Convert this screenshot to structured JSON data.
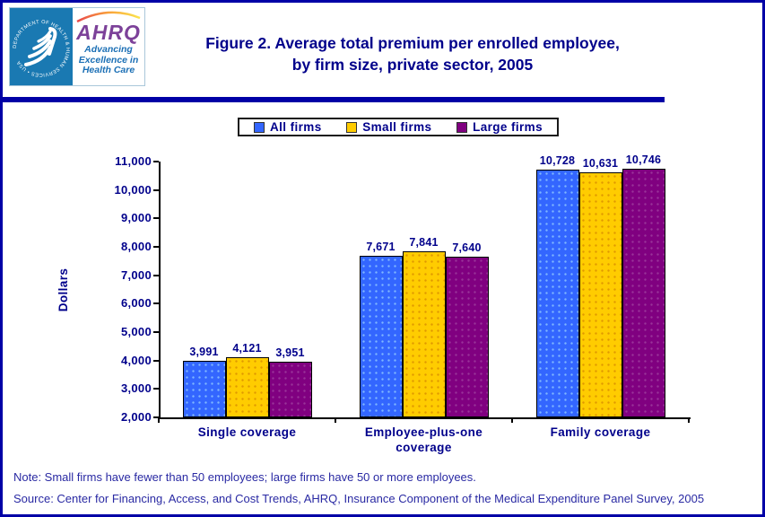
{
  "header": {
    "logo": {
      "seal_text": "DEPARTMENT OF HEALTH & HUMAN SERVICES • USA",
      "ahrq": "AHRQ",
      "tagline_lines": [
        "Advancing",
        "Excellence in",
        "Health Care"
      ]
    },
    "title_line1": "Figure 2. Average total premium per enrolled employee,",
    "title_line2": "by firm size, private sector, 2005"
  },
  "chart_data": {
    "type": "bar",
    "title": "Figure 2. Average total premium per enrolled employee, by firm size, private sector, 2005",
    "categories": [
      "Single coverage",
      "Employee-plus-one coverage",
      "Family coverage"
    ],
    "series": [
      {
        "name": "All firms",
        "values": [
          3991,
          7671,
          10728
        ],
        "color": "#3366FF",
        "dot_color": "#7EB6FF"
      },
      {
        "name": "Small firms",
        "values": [
          4121,
          7841,
          10631
        ],
        "color": "#FFCC00",
        "dot_color": "#E09900"
      },
      {
        "name": "Large firms",
        "values": [
          3951,
          7640,
          10746
        ],
        "color": "#800080",
        "dot_color": "#993399"
      }
    ],
    "xlabel": "",
    "ylabel": "Dollars",
    "ylim": [
      2000,
      11000
    ],
    "ytick_step": 1000,
    "grid": false,
    "legend_position": "top"
  },
  "footer": {
    "note": "Note: Small firms have fewer than 50 employees; large firms have 50 or more employees.",
    "source": "Source: Center for Financing, Access, and Cost Trends, AHRQ, Insurance Component of the Medical Expenditure Panel Survey, 2005"
  },
  "colors": {
    "title_navy": "#00008B",
    "rule_navy": "#0000A6",
    "footer_navy": "#2929A3",
    "hhs_seal_blue": "#1A79B2",
    "ahrq_purple": "#7C4199",
    "tagline_blue": "#1B6FB5"
  }
}
